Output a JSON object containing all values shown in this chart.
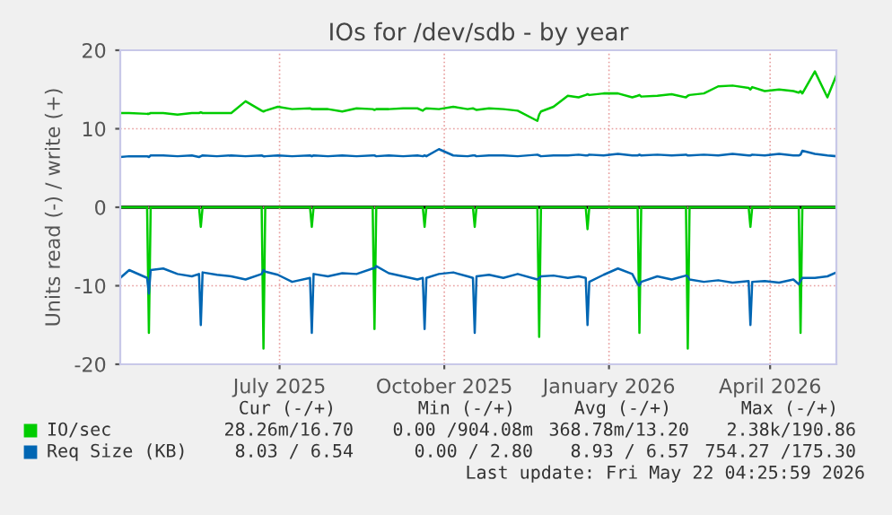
{
  "chart_data": {
    "type": "line",
    "title": "IOs for /dev/sdb - by year",
    "ylabel": "Units read (-) / write (+)",
    "x": [
      "2025-04-17",
      "2025-04-22",
      "2025-05-02",
      "2025-05-03",
      "2025-05-04",
      "2025-05-11",
      "2025-05-19",
      "2025-05-27",
      "2025-05-31",
      "2025-06-01",
      "2025-06-02",
      "2025-06-10",
      "2025-06-18",
      "2025-06-26",
      "2025-07-05",
      "2025-07-06",
      "2025-07-07",
      "2025-07-14",
      "2025-07-22",
      "2025-08-01",
      "2025-08-02",
      "2025-08-03",
      "2025-08-11",
      "2025-08-19",
      "2025-08-27",
      "2025-09-05",
      "2025-09-06",
      "2025-09-07",
      "2025-09-14",
      "2025-09-22",
      "2025-09-30",
      "2025-10-03",
      "2025-10-04",
      "2025-10-05",
      "2025-10-12",
      "2025-10-20",
      "2025-10-28",
      "2025-10-31",
      "2025-11-01",
      "2025-11-02",
      "2025-11-09",
      "2025-11-17",
      "2025-11-25",
      "2025-12-06",
      "2025-12-07",
      "2025-12-08",
      "2025-12-15",
      "2025-12-23",
      "2025-12-29",
      "2026-01-02",
      "2026-01-03",
      "2026-01-04",
      "2026-01-12",
      "2026-01-20",
      "2026-01-28",
      "2026-01-31",
      "2026-02-01",
      "2026-02-02",
      "2026-02-11",
      "2026-02-19",
      "2026-02-27",
      "2026-02-28",
      "2026-03-01",
      "2026-03-09",
      "2026-03-17",
      "2026-03-25",
      "2026-04-03",
      "2026-04-04",
      "2026-04-05",
      "2026-04-12",
      "2026-04-20",
      "2026-04-28",
      "2026-05-01",
      "2026-05-02",
      "2026-05-03",
      "2026-05-10",
      "2026-05-17",
      "2026-05-22"
    ],
    "series": [
      {
        "name": "IO/sec",
        "color": "#00cc00",
        "values": [
          12.0,
          12.0,
          11.9,
          11.9,
          12.0,
          12.0,
          11.8,
          12.0,
          12.0,
          12.1,
          12.0,
          12.0,
          12.0,
          13.5,
          12.3,
          12.2,
          12.3,
          12.8,
          12.5,
          12.6,
          12.5,
          12.5,
          12.5,
          12.2,
          12.6,
          12.5,
          12.4,
          12.5,
          12.5,
          12.6,
          12.6,
          12.3,
          12.5,
          12.6,
          12.5,
          12.8,
          12.5,
          12.6,
          12.5,
          12.4,
          12.6,
          12.5,
          12.3,
          11.0,
          11.8,
          12.2,
          12.8,
          14.2,
          14.0,
          14.3,
          14.4,
          14.3,
          14.5,
          14.5,
          14.0,
          14.2,
          14.3,
          14.1,
          14.2,
          14.4,
          14.0,
          14.2,
          14.3,
          14.5,
          15.4,
          15.5,
          15.2,
          15.0,
          15.3,
          14.8,
          15.0,
          14.8,
          14.6,
          14.8,
          14.5,
          17.3,
          14.0,
          16.8
        ]
      },
      {
        "color": "#00cc00",
        "values": [
          0,
          0,
          0,
          -16,
          0,
          0,
          0,
          0,
          0,
          -2.5,
          0,
          0,
          0,
          0,
          0,
          -18,
          0,
          0,
          0,
          0,
          -2.5,
          0,
          0,
          0,
          0,
          0,
          -15.5,
          0,
          0,
          0,
          0,
          0,
          -2.5,
          0,
          0,
          0,
          0,
          0,
          -2.5,
          0,
          0,
          0,
          0,
          0,
          -16.5,
          0,
          0,
          0,
          0,
          0,
          -2.8,
          0,
          0,
          0,
          0,
          0,
          -16,
          0,
          0,
          0,
          0,
          -18,
          0,
          0,
          0,
          0,
          0,
          -2.5,
          0,
          0,
          0,
          0,
          0,
          -16,
          0,
          0,
          0,
          0
        ]
      },
      {
        "name": "Req Size (KB)",
        "color": "#0066b3",
        "values": [
          6.4,
          6.5,
          6.5,
          6.4,
          6.6,
          6.6,
          6.5,
          6.6,
          6.4,
          6.5,
          6.6,
          6.5,
          6.6,
          6.5,
          6.6,
          6.5,
          6.5,
          6.6,
          6.5,
          6.6,
          6.5,
          6.6,
          6.5,
          6.6,
          6.5,
          6.6,
          6.6,
          6.5,
          6.6,
          6.5,
          6.6,
          6.5,
          6.6,
          6.5,
          7.4,
          6.6,
          6.5,
          6.6,
          6.6,
          6.5,
          6.6,
          6.6,
          6.5,
          6.7,
          6.6,
          6.5,
          6.6,
          6.6,
          6.7,
          6.6,
          6.6,
          6.7,
          6.6,
          6.8,
          6.6,
          6.6,
          6.7,
          6.6,
          6.7,
          6.6,
          6.7,
          6.6,
          6.6,
          6.7,
          6.6,
          6.8,
          6.6,
          6.6,
          6.7,
          6.6,
          6.8,
          6.6,
          6.6,
          6.7,
          7.2,
          6.8,
          6.6,
          6.5
        ]
      },
      {
        "color": "#0066b3",
        "values": [
          -9.0,
          -8.0,
          -9.0,
          -11.0,
          -8.0,
          -7.8,
          -8.5,
          -8.8,
          -8.5,
          -15.0,
          -8.3,
          -8.6,
          -8.8,
          -9.2,
          -8.5,
          -8.0,
          -8.2,
          -8.6,
          -9.5,
          -9.0,
          -16.0,
          -8.5,
          -8.8,
          -8.4,
          -8.5,
          -7.8,
          -7.8,
          -7.5,
          -8.4,
          -8.8,
          -9.2,
          -9.0,
          -15.5,
          -9.0,
          -8.5,
          -8.3,
          -8.8,
          -9.0,
          -16.0,
          -8.8,
          -8.6,
          -9.0,
          -8.5,
          -9.2,
          -9.0,
          -8.8,
          -8.7,
          -9.0,
          -8.8,
          -9.0,
          -15.0,
          -9.5,
          -8.6,
          -7.8,
          -8.5,
          -9.8,
          -10.0,
          -9.5,
          -8.8,
          -9.2,
          -8.7,
          -8.8,
          -9.2,
          -9.5,
          -9.3,
          -9.6,
          -9.4,
          -15.0,
          -9.5,
          -9.4,
          -9.6,
          -9.2,
          -9.8,
          -9.4,
          -9.0,
          -9.0,
          -8.8,
          -8.3
        ]
      }
    ],
    "xlim": [
      "2025-04-17",
      "2026-05-22"
    ],
    "xticks": [
      {
        "value": "2025-07-15",
        "label": "July 2025"
      },
      {
        "value": "2025-10-15",
        "label": "October 2025"
      },
      {
        "value": "2026-01-15",
        "label": "January 2026"
      },
      {
        "value": "2026-04-15",
        "label": "April 2026"
      }
    ],
    "ylim": [
      -20,
      20
    ],
    "yticks": [
      -20,
      -10,
      0,
      10,
      20
    ],
    "ref_lines": [
      {
        "axis": "y",
        "value": 0,
        "color": "#000000"
      }
    ],
    "grid": true,
    "legend": "bottom",
    "annotations": [
      "Cur (-/+)",
      "Min (-/+)",
      "Avg (-/+)",
      "Max (-/+)",
      "28.26m/16.70",
      "0.00 /904.08m",
      "368.78m/13.20",
      "2.38k/190.86",
      "8.03 / 6.54",
      "0.00 / 2.80",
      "8.93 / 6.57",
      "754.27 /175.30",
      "Last update: Fri May 22 04:25:59 2026"
    ]
  }
}
